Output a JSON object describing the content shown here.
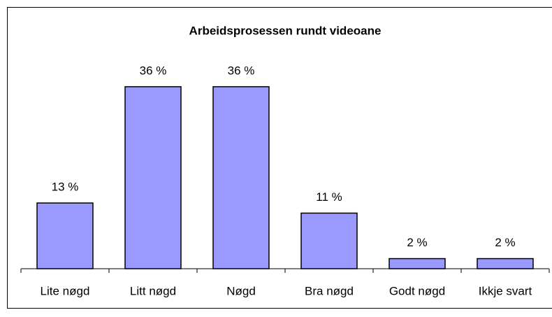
{
  "chart_data": {
    "type": "bar",
    "title": "Arbeidsprosessen rundt videoane",
    "categories": [
      "Lite nøgd",
      "Litt nøgd",
      "Nøgd",
      "Bra nøgd",
      "Godt nøgd",
      "Ikkje svart"
    ],
    "values": [
      13,
      36,
      36,
      11,
      2,
      2
    ],
    "value_labels": [
      "13 %",
      "36 %",
      "36 %",
      "11 %",
      "2 %",
      "2 %"
    ],
    "color": "#9999ff",
    "ylim": [
      0,
      40
    ]
  }
}
